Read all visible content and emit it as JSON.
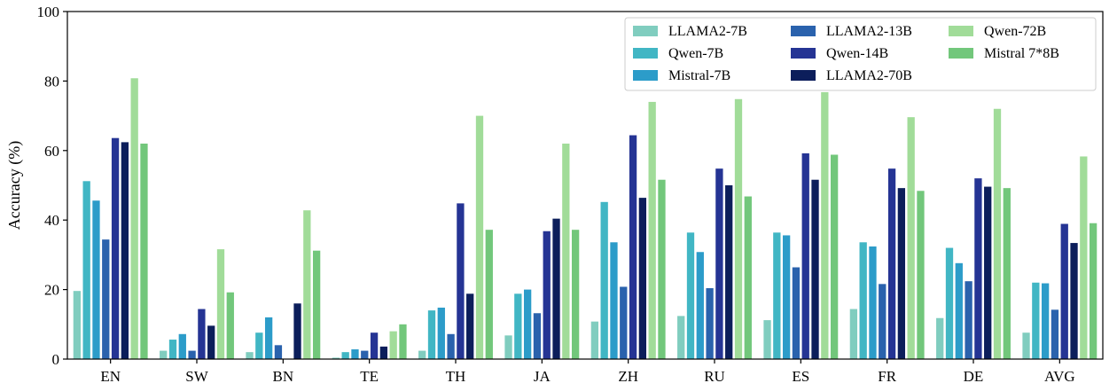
{
  "chart_data": {
    "type": "bar",
    "title": "",
    "xlabel": "",
    "ylabel": "Accuracy (%)",
    "ylim": [
      0,
      100
    ],
    "yticks": [
      "0",
      "20",
      "40",
      "60",
      "80",
      "100"
    ],
    "grid": false,
    "legend_position": "top-right",
    "categories": [
      "EN",
      "SW",
      "BN",
      "TE",
      "TH",
      "JA",
      "ZH",
      "RU",
      "ES",
      "FR",
      "DE",
      "AVG"
    ],
    "series": [
      {
        "name": "LLAMA2-7B",
        "color": "#80cdbf",
        "values": [
          19.6,
          2.4,
          2.0,
          0.4,
          2.4,
          6.8,
          10.8,
          12.4,
          11.2,
          14.4,
          11.8,
          7.6
        ]
      },
      {
        "name": "Qwen-7B",
        "color": "#41b6c4",
        "values": [
          51.2,
          5.6,
          7.6,
          2.0,
          14.0,
          18.8,
          45.2,
          36.4,
          36.4,
          33.6,
          32.0,
          22.0
        ]
      },
      {
        "name": "Mistral-7B",
        "color": "#2c9cc9",
        "values": [
          45.6,
          7.2,
          12.0,
          2.8,
          14.8,
          20.0,
          33.6,
          30.8,
          35.6,
          32.4,
          27.6,
          21.8
        ]
      },
      {
        "name": "LLAMA2-13B",
        "color": "#2a62ad",
        "values": [
          34.4,
          2.4,
          4.0,
          2.4,
          7.2,
          13.2,
          20.8,
          20.4,
          26.4,
          21.6,
          22.4,
          14.2
        ]
      },
      {
        "name": "Qwen-14B",
        "color": "#253494",
        "values": [
          63.6,
          14.4,
          0.0,
          7.6,
          44.8,
          36.8,
          64.4,
          54.8,
          59.2,
          54.8,
          52.0,
          38.9
        ]
      },
      {
        "name": "LLAMA2-70B",
        "color": "#0c1e5b",
        "values": [
          62.4,
          9.6,
          16.0,
          3.6,
          18.8,
          40.4,
          46.4,
          50.0,
          51.6,
          49.2,
          49.6,
          33.4
        ]
      },
      {
        "name": "Qwen-72B",
        "color": "#a1dc99",
        "values": [
          80.8,
          31.6,
          42.8,
          8.0,
          70.0,
          62.0,
          74.0,
          74.8,
          76.8,
          69.6,
          72.0,
          58.3
        ]
      },
      {
        "name": "Mistral 7*8B",
        "color": "#72c77b",
        "values": [
          62.0,
          19.2,
          31.2,
          10.0,
          37.2,
          37.2,
          51.6,
          46.8,
          58.8,
          48.4,
          49.2,
          39.1
        ]
      }
    ]
  }
}
